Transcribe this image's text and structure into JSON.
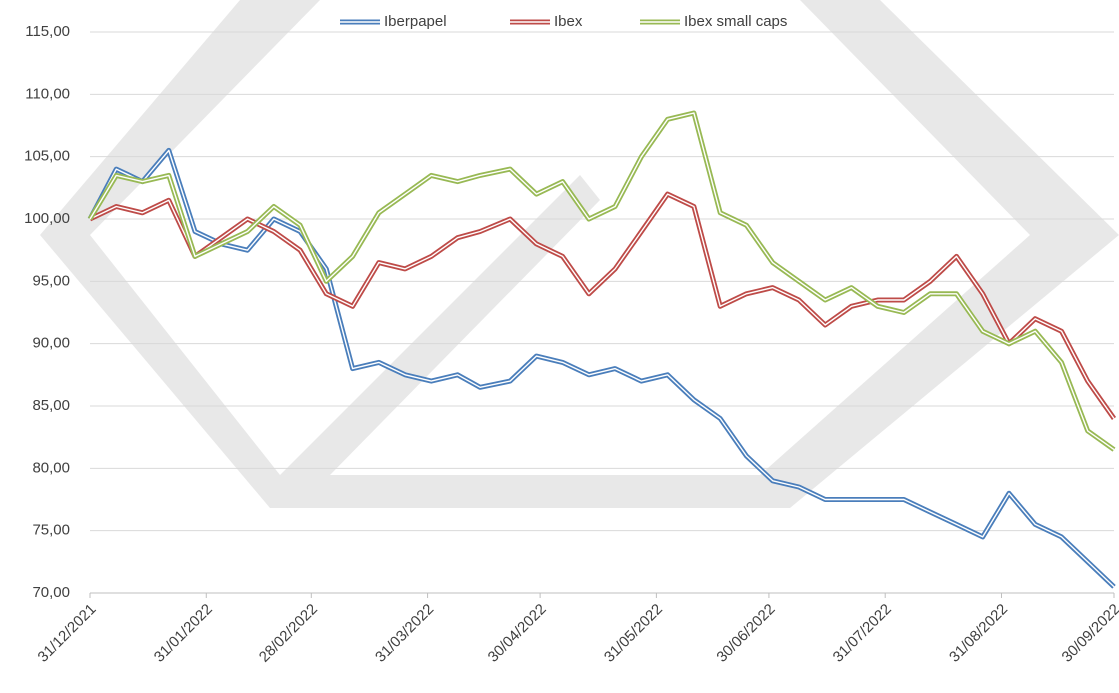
{
  "chart_data": {
    "type": "line",
    "x": [
      "31/12/2021",
      "07/01/2022",
      "14/01/2022",
      "21/01/2022",
      "28/01/2022",
      "04/02/2022",
      "11/02/2022",
      "18/02/2022",
      "25/02/2022",
      "04/03/2022",
      "11/03/2022",
      "18/03/2022",
      "25/03/2022",
      "01/04/2022",
      "08/04/2022",
      "14/04/2022",
      "22/04/2022",
      "29/04/2022",
      "06/05/2022",
      "13/05/2022",
      "20/05/2022",
      "27/05/2022",
      "03/06/2022",
      "10/06/2022",
      "17/06/2022",
      "24/06/2022",
      "01/07/2022",
      "08/07/2022",
      "15/07/2022",
      "22/07/2022",
      "29/07/2022",
      "05/08/2022",
      "12/08/2022",
      "19/08/2022",
      "26/08/2022",
      "02/09/2022",
      "09/09/2022",
      "16/09/2022",
      "23/09/2022",
      "30/09/2022"
    ],
    "series": [
      {
        "name": "Iberpapel",
        "color": "#4a7ebb",
        "values": [
          100,
          104,
          103,
          105.5,
          99,
          98,
          97.5,
          100,
          99,
          96,
          88,
          88.5,
          87.5,
          87,
          87.5,
          86.5,
          87,
          89,
          88.5,
          87.5,
          88,
          87,
          87.5,
          85.5,
          84,
          81,
          79,
          78.5,
          77.5,
          77.5,
          77.5,
          77.5,
          76.5,
          75.5,
          74.5,
          78,
          75.5,
          74.5,
          72.5,
          70.5
        ]
      },
      {
        "name": "Ibex",
        "color": "#be4b48",
        "values": [
          100,
          101,
          100.5,
          101.5,
          97,
          98.5,
          100,
          99,
          97.5,
          94,
          93,
          96.5,
          96,
          97,
          98.5,
          99,
          100,
          98,
          97,
          94,
          96,
          99,
          102,
          101,
          93,
          94,
          94.5,
          93.5,
          91.5,
          93,
          93.5,
          93.5,
          95,
          97,
          94,
          90,
          92,
          91,
          87,
          84
        ]
      },
      {
        "name": "Ibex small caps",
        "color": "#98b954",
        "values": [
          100,
          103.5,
          103,
          103.5,
          97,
          98,
          99,
          101,
          99.5,
          95,
          97,
          100.5,
          102,
          103.5,
          103,
          103.5,
          104,
          102,
          103,
          100,
          101,
          105,
          108,
          108.5,
          100.5,
          99.5,
          96.5,
          95,
          93.5,
          94.5,
          93,
          92.5,
          94,
          94,
          91,
          90,
          91,
          88.5,
          83,
          81.5
        ]
      }
    ],
    "xlim": [
      "31/12/2021",
      "30/09/2022"
    ],
    "xticks": [
      "31/12/2021",
      "31/01/2022",
      "28/02/2022",
      "31/03/2022",
      "30/04/2022",
      "31/05/2022",
      "30/06/2022",
      "31/07/2022",
      "31/08/2022",
      "30/09/2022"
    ],
    "ylim": [
      70,
      115
    ],
    "yticks": [
      {
        "value": 70,
        "label": "70,00"
      },
      {
        "value": 75,
        "label": "75,00"
      },
      {
        "value": 80,
        "label": "80,00"
      },
      {
        "value": 85,
        "label": "85,00"
      },
      {
        "value": 90,
        "label": "90,00"
      },
      {
        "value": 95,
        "label": "95,00"
      },
      {
        "value": 100,
        "label": "100,00"
      },
      {
        "value": 105,
        "label": "105,00"
      },
      {
        "value": 110,
        "label": "110,00"
      },
      {
        "value": 115,
        "label": "115,00"
      }
    ],
    "grid": true,
    "legend": "top"
  }
}
